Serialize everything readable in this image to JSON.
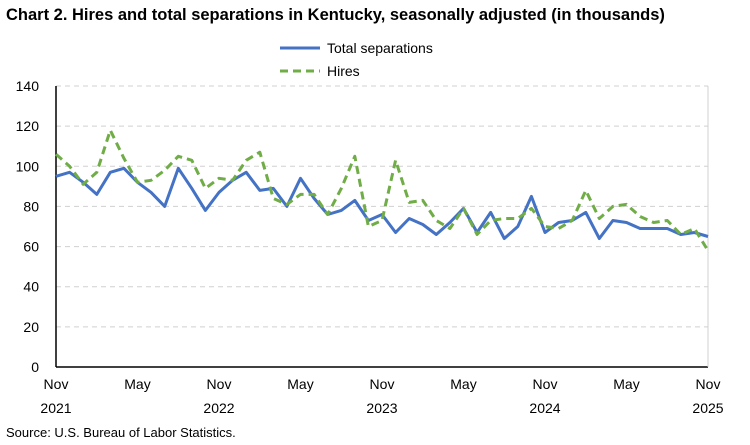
{
  "chart_data": {
    "type": "line",
    "title": "Chart 2. Hires and total separations in Kentucky, seasonally adjusted (in thousands)",
    "source": "Source: U.S. Bureau of Labor Statistics.",
    "xlabel": "",
    "ylabel": "",
    "ylim": [
      0,
      140
    ],
    "yticks": [
      0,
      20,
      40,
      60,
      80,
      100,
      120,
      140
    ],
    "grid": true,
    "legend": "top-center",
    "x_start": "Nov 2021",
    "x_end": "Nov 2025",
    "xtick_labels": [
      {
        "month": "Nov",
        "year": "2021",
        "index": 0
      },
      {
        "month": "May",
        "year": "",
        "index": 6
      },
      {
        "month": "Nov",
        "year": "2022",
        "index": 12
      },
      {
        "month": "May",
        "year": "",
        "index": 18
      },
      {
        "month": "Nov",
        "year": "2023",
        "index": 24
      },
      {
        "month": "May",
        "year": "",
        "index": 30
      },
      {
        "month": "Nov",
        "year": "2024",
        "index": 36
      },
      {
        "month": "May",
        "year": "",
        "index": 42
      },
      {
        "month": "Nov",
        "year": "2025",
        "index": 48
      }
    ],
    "series": [
      {
        "name": "Total separations",
        "color": "#4472C4",
        "style": "solid",
        "values": [
          95,
          97,
          92,
          86,
          97,
          99,
          92,
          87,
          80,
          99,
          89,
          78,
          87,
          93,
          97,
          88,
          89,
          80,
          94,
          84,
          76,
          78,
          83,
          73,
          76,
          67,
          74,
          71,
          66,
          72,
          79,
          67,
          77,
          64,
          70,
          85,
          67,
          72,
          73,
          77,
          64,
          73,
          72,
          69,
          69,
          69,
          66,
          67,
          65
        ]
      },
      {
        "name": "Hires",
        "color": "#70AD47",
        "style": "dashed",
        "values": [
          106,
          100,
          91,
          97,
          118,
          104,
          92,
          93,
          98,
          105,
          103,
          89,
          94,
          93,
          103,
          107,
          84,
          81,
          86,
          86,
          76,
          89,
          105,
          70,
          73,
          103,
          82,
          83,
          73,
          69,
          79,
          66,
          73,
          74,
          74,
          79,
          70,
          69,
          73,
          88,
          74,
          80,
          81,
          75,
          72,
          73,
          66,
          69,
          58
        ]
      }
    ]
  }
}
